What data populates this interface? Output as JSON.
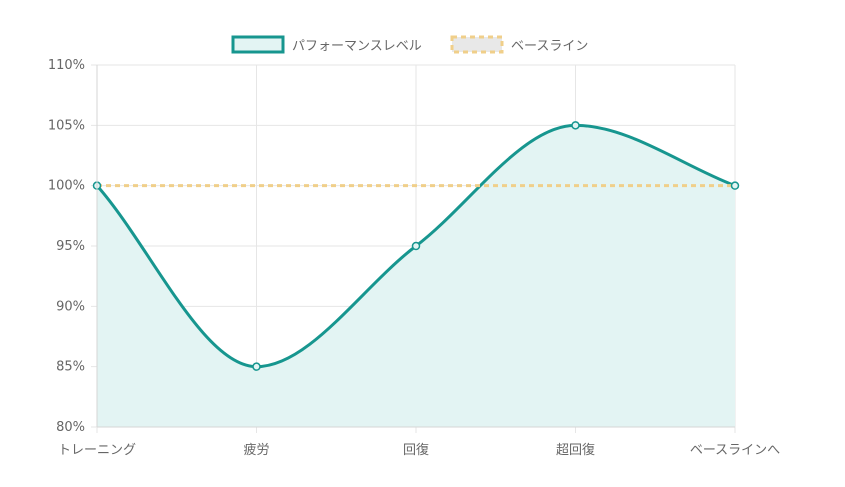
{
  "chart_data": {
    "type": "line",
    "categories": [
      "トレーニング",
      "疲労",
      "回復",
      "超回復",
      "ベースラインへ"
    ],
    "series": [
      {
        "name": "パフォーマンスレベル",
        "values": [
          100,
          85,
          95,
          105,
          100
        ],
        "color": "#17968f",
        "fill": "#e3f4f3",
        "smooth": true,
        "filled": true
      },
      {
        "name": "ベースライン",
        "values": [
          100,
          100,
          100,
          100,
          100
        ],
        "color": "#f0cf8a",
        "dashed": true
      }
    ],
    "ylim": [
      80,
      110
    ],
    "yticks": [
      "80%",
      "85%",
      "90%",
      "95%",
      "100%",
      "105%",
      "110%"
    ],
    "ytick_values": [
      80,
      85,
      90,
      95,
      100,
      105,
      110
    ],
    "legend": "top-center",
    "grid": true
  }
}
